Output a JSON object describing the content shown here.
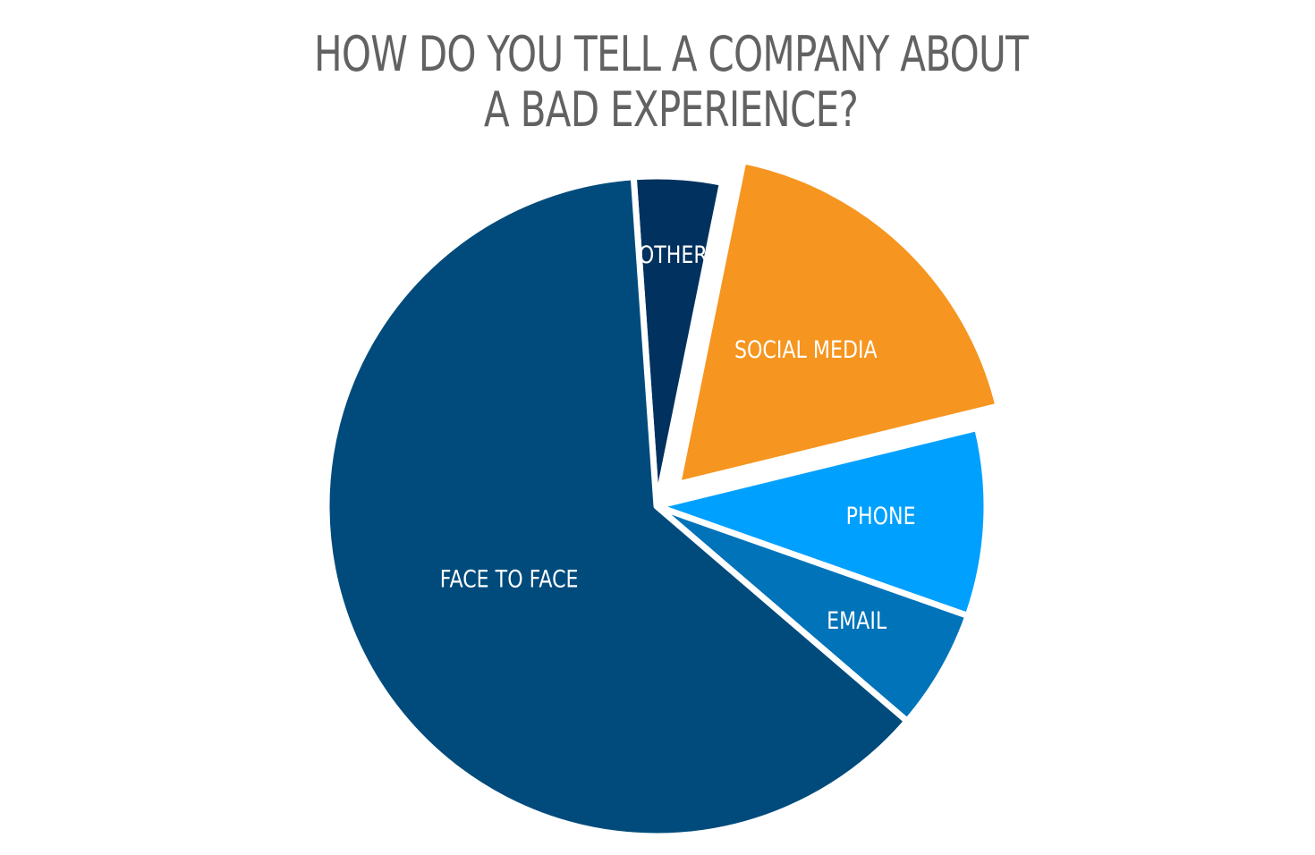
{
  "chart_data": {
    "type": "pie",
    "title_lines": [
      "HOW DO YOU TELL A COMPANY ABOUT",
      "A BAD EXPERIENCE?"
    ],
    "slices": [
      {
        "label": "OTHER",
        "value": 4.3,
        "color": "#00315f",
        "exploded": false
      },
      {
        "label": "SOCIAL MEDIA",
        "value": 18.0,
        "color": "#f6951f",
        "exploded": true
      },
      {
        "label": "PHONE",
        "value": 9.2,
        "color": "#00a0ff",
        "exploded": false
      },
      {
        "label": "EMAIL",
        "value": 5.9,
        "color": "#0073b9",
        "exploded": false
      },
      {
        "label": "FACE TO FACE",
        "value": 62.6,
        "color": "#004b7c",
        "exploded": false
      }
    ],
    "start_angle_deg": -4,
    "direction": "clockwise",
    "legend": "none",
    "labels_inside": true
  }
}
